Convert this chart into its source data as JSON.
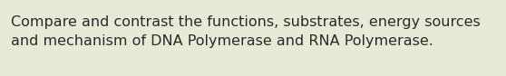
{
  "text_line1": "Compare and contrast the functions, substrates, energy sources",
  "text_line2": "and mechanism of DNA Polymerase and RNA Polymerase.",
  "background_color": "#e8ead8",
  "text_color": "#2b2b2b",
  "font_size": 11.5,
  "fig_width": 5.58,
  "fig_height": 0.84,
  "dpi": 100
}
